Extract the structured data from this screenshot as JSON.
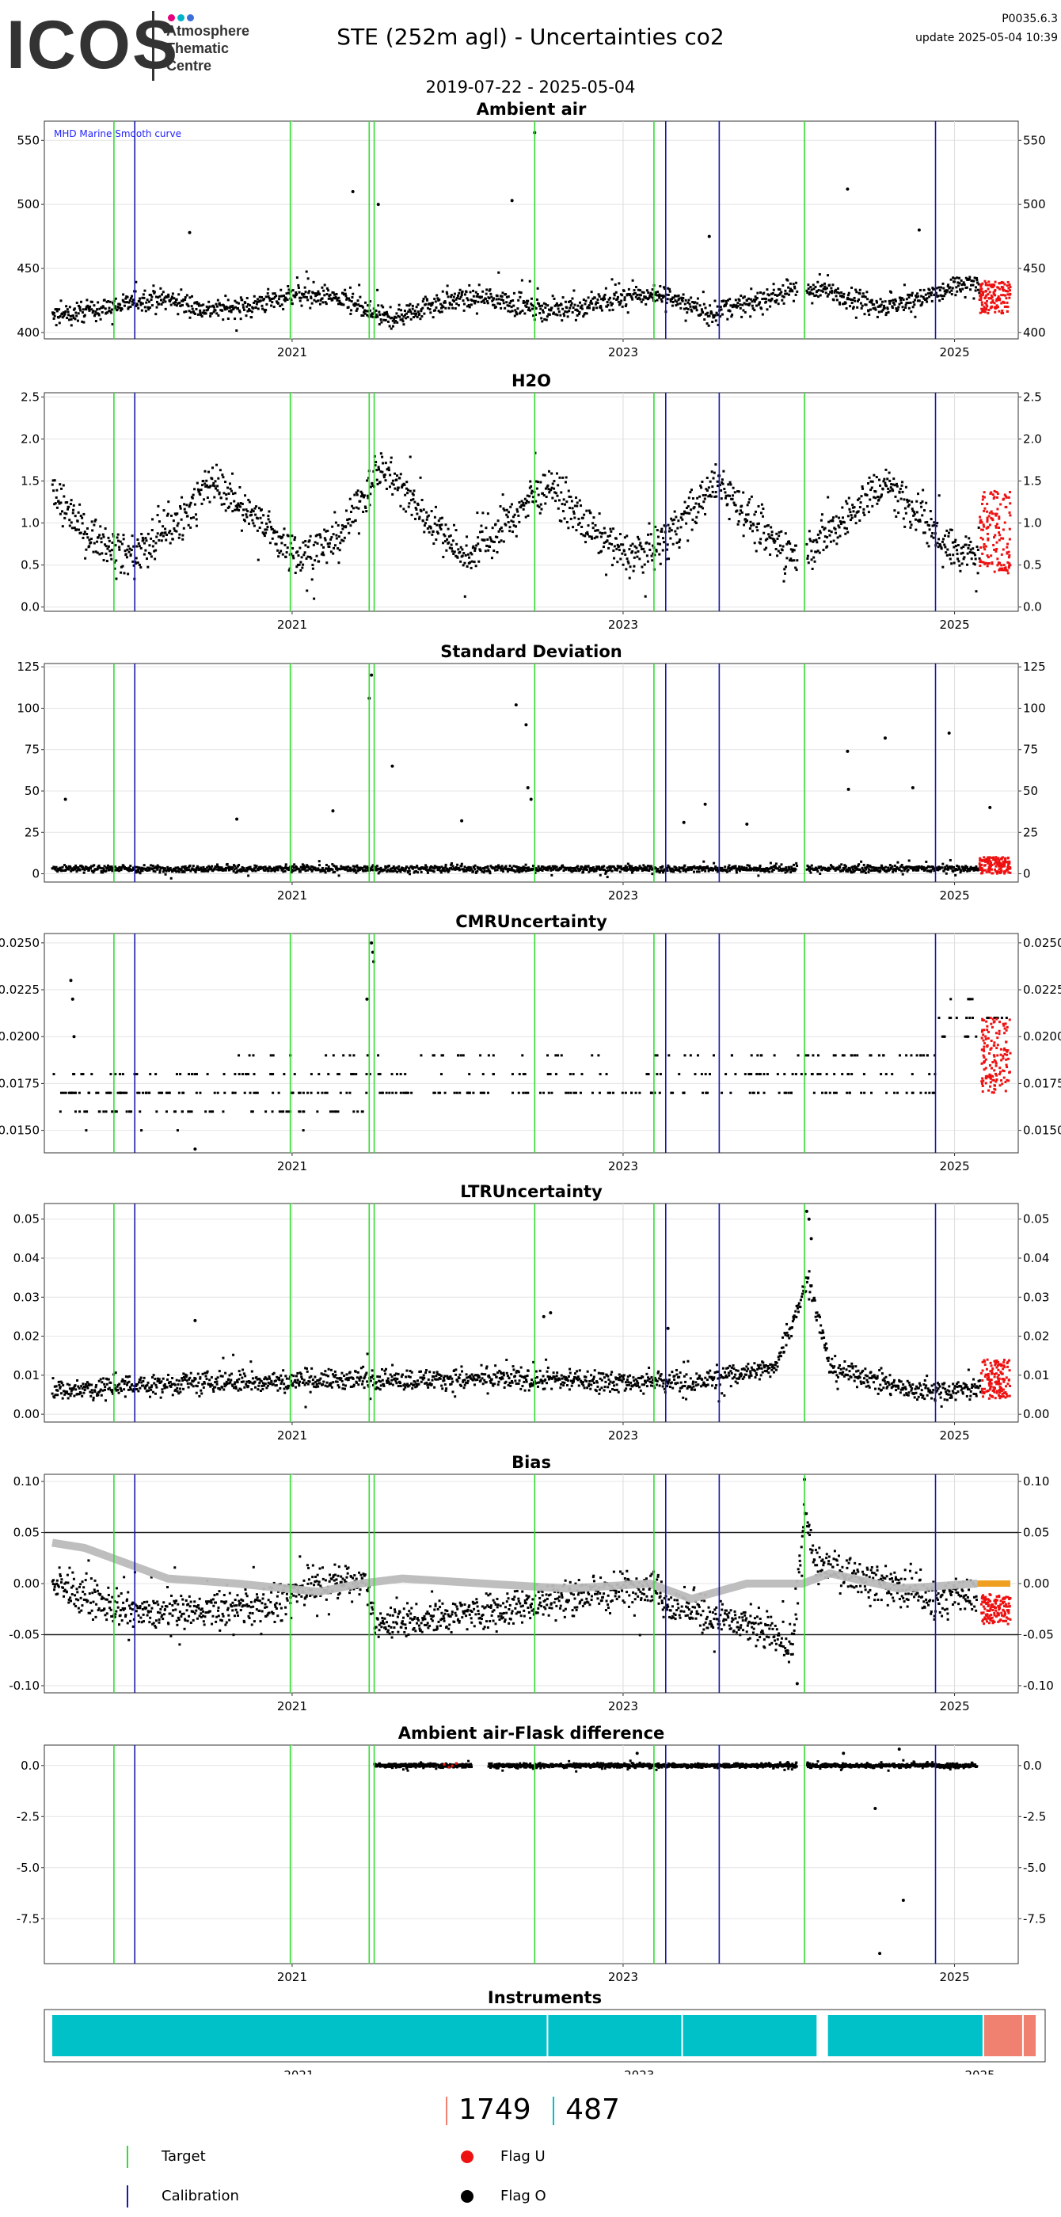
{
  "header": {
    "logo_text": "ICOS",
    "logo_sub": [
      "Atmosphere",
      "Thematic",
      "Centre"
    ],
    "logo_dot_colors": [
      "#e6007e",
      "#00b3c8",
      "#3b6fd8"
    ],
    "title": "STE  (252m agl) - Uncertainties co2",
    "date_range": "2019-07-22 - 2025-05-04",
    "code": "P0035.6.3",
    "update": "update  2025-05-04 10:39"
  },
  "colors": {
    "target": "#33dd33",
    "calibration": "#1a1aa8",
    "flag_u": "#ee1111",
    "flag_o": "#000000",
    "smooth": "#bbbbbb",
    "bias_orange": "#f0a020",
    "instrument_1": "#00c0c8",
    "instrument_2": "#f08070",
    "annotation": "#2222ff"
  },
  "chart_data": [
    {
      "type": "scatter",
      "title": "Ambient air",
      "annotation": "MHD Marine Smooth curve",
      "x_range": [
        "2019-07-22",
        "2025-05-04"
      ],
      "x_ticks": [
        "2021",
        "2023",
        "2025"
      ],
      "ylim": [
        395,
        565
      ],
      "y_ticks": [
        "400",
        "450",
        "500",
        "550"
      ],
      "baseline": [
        [
          "2019-07-22",
          412
        ],
        [
          "2019-12-01",
          420
        ],
        [
          "2020-03-01",
          428
        ],
        [
          "2020-07-01",
          418
        ],
        [
          "2020-10-01",
          420
        ],
        [
          "2021-01-01",
          430
        ],
        [
          "2021-04-01",
          428
        ],
        [
          "2021-08-01",
          410
        ],
        [
          "2021-11-01",
          422
        ],
        [
          "2022-03-01",
          428
        ],
        [
          "2022-07-01",
          418
        ],
        [
          "2022-10-01",
          420
        ],
        [
          "2023-01-01",
          428
        ],
        [
          "2023-04-01",
          430
        ],
        [
          "2023-07-01",
          415
        ],
        [
          "2023-10-01",
          422
        ],
        [
          "2024-01-01",
          432
        ],
        [
          "2024-04-01",
          432
        ],
        [
          "2024-08-01",
          420
        ],
        [
          "2024-11-01",
          428
        ],
        [
          "2025-02-01",
          438
        ],
        [
          "2025-05-04",
          432
        ]
      ],
      "spread": 12,
      "gaps": [
        [
          "2024-01-20",
          "2024-02-10"
        ]
      ],
      "outliers": [
        [
          "2022-06-20",
          556
        ],
        [
          "2021-05-15",
          510
        ],
        [
          "2024-05-10",
          512
        ],
        [
          "2022-05-01",
          503
        ],
        [
          "2021-07-10",
          500
        ],
        [
          "2020-05-20",
          478
        ],
        [
          "2023-07-10",
          475
        ],
        [
          "2024-10-15",
          480
        ]
      ],
      "flag_u_range": [
        "2025-02-25",
        "2025-05-04"
      ],
      "flag_u_band": [
        415,
        440
      ],
      "target_lines": [
        "2019-12-05",
        "2020-12-28",
        "2021-06-20",
        "2021-07-01",
        "2022-06-20",
        "2023-03-10",
        "2024-02-05"
      ],
      "calibration_lines": [
        "2020-01-20",
        "2023-04-05",
        "2023-08-01",
        "2024-11-20"
      ]
    },
    {
      "type": "scatter",
      "title": "H2O",
      "x_range": [
        "2019-07-22",
        "2025-05-04"
      ],
      "x_ticks": [
        "2021",
        "2023",
        "2025"
      ],
      "ylim": [
        -0.05,
        2.55
      ],
      "y_ticks": [
        "0.0",
        "0.5",
        "1.0",
        "1.5",
        "2.0",
        "2.5"
      ],
      "baseline": [
        [
          "2019-07-22",
          1.4
        ],
        [
          "2019-10-01",
          0.9
        ],
        [
          "2020-01-15",
          0.6
        ],
        [
          "2020-04-01",
          0.9
        ],
        [
          "2020-07-15",
          1.5
        ],
        [
          "2020-10-01",
          1.1
        ],
        [
          "2021-01-15",
          0.6
        ],
        [
          "2021-04-15",
          0.8
        ],
        [
          "2021-07-15",
          1.7
        ],
        [
          "2021-10-01",
          1.2
        ],
        [
          "2022-01-15",
          0.6
        ],
        [
          "2022-04-01",
          0.9
        ],
        [
          "2022-07-20",
          1.5
        ],
        [
          "2022-10-01",
          1.0
        ],
        [
          "2023-01-15",
          0.6
        ],
        [
          "2023-04-01",
          0.8
        ],
        [
          "2023-08-01",
          1.5
        ],
        [
          "2023-10-15",
          1.0
        ],
        [
          "2024-01-15",
          0.6
        ],
        [
          "2024-04-01",
          0.9
        ],
        [
          "2024-08-01",
          1.5
        ],
        [
          "2024-10-15",
          1.1
        ],
        [
          "2025-01-15",
          0.6
        ],
        [
          "2025-05-04",
          0.9
        ]
      ],
      "spread": 0.35,
      "gaps": [
        [
          "2024-01-20",
          "2024-02-10"
        ]
      ],
      "outliers": [],
      "flag_u_range": [
        "2025-02-25",
        "2025-05-04"
      ],
      "flag_u_band": [
        0.4,
        1.4
      ],
      "target_lines": [
        "2019-12-05",
        "2020-12-28",
        "2021-06-20",
        "2021-07-01",
        "2022-06-20",
        "2023-03-10",
        "2024-02-05"
      ],
      "calibration_lines": [
        "2020-01-20",
        "2023-04-05",
        "2023-08-01",
        "2024-11-20"
      ]
    },
    {
      "type": "scatter",
      "title": "Standard Deviation",
      "x_range": [
        "2019-07-22",
        "2025-05-04"
      ],
      "x_ticks": [
        "2021",
        "2023",
        "2025"
      ],
      "ylim": [
        -5,
        127
      ],
      "y_ticks": [
        "0",
        "25",
        "50",
        "75",
        "100",
        "125"
      ],
      "baseline": [
        [
          "2019-07-22",
          3
        ],
        [
          "2025-05-04",
          3
        ]
      ],
      "spread": 3,
      "gaps": [
        [
          "2024-01-20",
          "2024-02-10"
        ]
      ],
      "outliers": [
        [
          "2021-06-25",
          120
        ],
        [
          "2021-06-20",
          106
        ],
        [
          "2022-05-10",
          102
        ],
        [
          "2022-06-01",
          90
        ],
        [
          "2024-08-01",
          82
        ],
        [
          "2024-12-20",
          85
        ],
        [
          "2024-05-10",
          74
        ],
        [
          "2021-08-10",
          65
        ],
        [
          "2022-06-05",
          52
        ],
        [
          "2022-06-12",
          45
        ],
        [
          "2024-05-12",
          51
        ],
        [
          "2024-10-01",
          52
        ],
        [
          "2019-08-20",
          45
        ],
        [
          "2023-07-01",
          42
        ],
        [
          "2025-03-20",
          40
        ],
        [
          "2021-04-01",
          38
        ],
        [
          "2020-09-01",
          33
        ],
        [
          "2023-05-15",
          31
        ],
        [
          "2022-01-10",
          32
        ],
        [
          "2023-10-01",
          30
        ]
      ],
      "flag_u_range": [
        "2025-02-25",
        "2025-05-04"
      ],
      "flag_u_band": [
        0,
        10
      ],
      "target_lines": [
        "2019-12-05",
        "2020-12-28",
        "2021-06-20",
        "2021-07-01",
        "2022-06-20",
        "2023-03-10",
        "2024-02-05"
      ],
      "calibration_lines": [
        "2020-01-20",
        "2023-04-05",
        "2023-08-01",
        "2024-11-20"
      ]
    },
    {
      "type": "scatter",
      "title": "CMRUncertainty",
      "x_range": [
        "2019-07-22",
        "2025-05-04"
      ],
      "x_ticks": [
        "2021",
        "2023",
        "2025"
      ],
      "ylim": [
        0.0138,
        0.0255
      ],
      "y_ticks": [
        "0.0150",
        "0.0175",
        "0.0200",
        "0.0225",
        "0.0250"
      ],
      "levels": [
        {
          "y": 0.016,
          "from": "2019-07-22",
          "to": "2021-06-15",
          "density": 0.9
        },
        {
          "y": 0.017,
          "from": "2019-07-22",
          "to": "2024-11-20",
          "density": 1.0
        },
        {
          "y": 0.018,
          "from": "2019-07-22",
          "to": "2024-11-20",
          "density": 0.6
        },
        {
          "y": 0.019,
          "from": "2020-09-01",
          "to": "2024-11-20",
          "density": 0.5
        },
        {
          "y": 0.015,
          "from": "2019-10-01",
          "to": "2021-05-01",
          "density": 0.08
        },
        {
          "y": 0.021,
          "from": "2024-11-20",
          "to": "2025-05-04",
          "density": 1.0
        },
        {
          "y": 0.02,
          "from": "2024-11-20",
          "to": "2025-05-04",
          "density": 0.8
        },
        {
          "y": 0.022,
          "from": "2024-12-01",
          "to": "2025-02-20",
          "density": 0.7
        }
      ],
      "outliers": [
        [
          "2019-09-01",
          0.023
        ],
        [
          "2019-09-05",
          0.022
        ],
        [
          "2019-09-08",
          0.02
        ],
        [
          "2020-06-01",
          0.014
        ],
        [
          "2021-06-25",
          0.025
        ],
        [
          "2021-06-28",
          0.0245
        ],
        [
          "2021-06-30",
          0.024
        ],
        [
          "2021-06-15",
          0.022
        ]
      ],
      "flag_u_range": [
        "2025-03-01",
        "2025-05-04"
      ],
      "flag_u_band": [
        0.017,
        0.021
      ],
      "target_lines": [
        "2019-12-05",
        "2020-12-28",
        "2021-06-20",
        "2021-07-01",
        "2022-06-20",
        "2023-03-10",
        "2024-02-05"
      ],
      "calibration_lines": [
        "2020-01-20",
        "2023-04-05",
        "2023-08-01",
        "2024-11-20"
      ]
    },
    {
      "type": "scatter",
      "title": "LTRUncertainty",
      "x_range": [
        "2019-07-22",
        "2025-05-04"
      ],
      "x_ticks": [
        "2021",
        "2023",
        "2025"
      ],
      "ylim": [
        -0.002,
        0.054
      ],
      "y_ticks": [
        "0.00",
        "0.01",
        "0.02",
        "0.03",
        "0.04",
        "0.05"
      ],
      "baseline": [
        [
          "2019-07-22",
          0.006
        ],
        [
          "2020-06-01",
          0.008
        ],
        [
          "2021-06-01",
          0.009
        ],
        [
          "2022-06-01",
          0.009
        ],
        [
          "2023-06-01",
          0.008
        ],
        [
          "2023-12-01",
          0.012
        ],
        [
          "2024-02-15",
          0.035
        ],
        [
          "2024-04-01",
          0.012
        ],
        [
          "2024-10-01",
          0.006
        ],
        [
          "2025-05-04",
          0.007
        ]
      ],
      "spread": 0.004,
      "gaps": [],
      "outliers": [
        [
          "2024-02-10",
          0.052
        ],
        [
          "2024-02-15",
          0.05
        ],
        [
          "2024-02-20",
          0.045
        ],
        [
          "2022-07-10",
          0.025
        ],
        [
          "2020-06-01",
          0.024
        ],
        [
          "2022-07-25",
          0.026
        ],
        [
          "2023-04-10",
          0.022
        ]
      ],
      "flag_u_range": [
        "2025-03-01",
        "2025-05-04"
      ],
      "flag_u_band": [
        0.004,
        0.014
      ],
      "target_lines": [
        "2019-12-05",
        "2020-12-28",
        "2021-06-20",
        "2021-07-01",
        "2022-06-20",
        "2023-03-10",
        "2024-02-05"
      ],
      "calibration_lines": [
        "2020-01-20",
        "2023-04-05",
        "2023-08-01",
        "2024-11-20"
      ]
    },
    {
      "type": "scatter",
      "title": "Bias",
      "x_range": [
        "2019-07-22",
        "2025-05-04"
      ],
      "x_ticks": [
        "2021",
        "2023",
        "2025"
      ],
      "ylim": [
        -0.107,
        0.107
      ],
      "y_ticks": [
        "-0.10",
        "-0.05",
        "0.00",
        "0.05",
        "0.10"
      ],
      "hlines": [
        0.05,
        -0.05
      ],
      "baseline": [
        [
          "2019-07-22",
          0.0
        ],
        [
          "2020-01-20",
          -0.03
        ],
        [
          "2020-12-28",
          -0.02
        ],
        [
          "2021-01-10",
          -0.005
        ],
        [
          "2021-06-15",
          0.005
        ],
        [
          "2021-07-01",
          -0.04
        ],
        [
          "2022-06-20",
          -0.02
        ],
        [
          "2023-03-10",
          0.0
        ],
        [
          "2023-04-05",
          -0.02
        ],
        [
          "2023-10-01",
          -0.04
        ],
        [
          "2024-01-10",
          -0.06
        ],
        [
          "2024-02-05",
          0.07
        ],
        [
          "2024-03-01",
          0.02
        ],
        [
          "2024-11-20",
          -0.015
        ],
        [
          "2025-02-20",
          -0.01
        ]
      ],
      "spread": 0.025,
      "gaps": [],
      "outliers": [
        [
          "2024-02-05",
          0.102
        ],
        [
          "2024-01-20",
          -0.098
        ]
      ],
      "smooth_curve": [
        [
          "2019-07-22",
          0.04
        ],
        [
          "2019-10-01",
          0.035
        ],
        [
          "2020-01-01",
          0.02
        ],
        [
          "2020-04-01",
          0.005
        ],
        [
          "2020-09-01",
          0.0
        ],
        [
          "2021-03-01",
          -0.008
        ],
        [
          "2021-06-01",
          0.0
        ],
        [
          "2021-09-01",
          0.005
        ],
        [
          "2022-03-01",
          0.0
        ],
        [
          "2022-09-01",
          -0.005
        ],
        [
          "2023-03-01",
          0.0
        ],
        [
          "2023-06-01",
          -0.015
        ],
        [
          "2023-10-01",
          0.0
        ],
        [
          "2024-02-01",
          0.0
        ],
        [
          "2024-04-01",
          0.01
        ],
        [
          "2024-09-01",
          -0.005
        ],
        [
          "2025-02-20",
          0.0
        ]
      ],
      "orange_segment": [
        [
          "2025-02-20",
          0.0
        ],
        [
          "2025-05-04",
          0.0
        ]
      ],
      "flag_u_range": [
        "2025-03-01",
        "2025-05-04"
      ],
      "flag_u_band": [
        -0.04,
        -0.01
      ],
      "target_lines": [
        "2019-12-05",
        "2020-12-28",
        "2021-06-20",
        "2021-07-01",
        "2022-06-20",
        "2023-03-10",
        "2024-02-05"
      ],
      "calibration_lines": [
        "2020-01-20",
        "2023-04-05",
        "2023-08-01",
        "2024-11-20"
      ]
    },
    {
      "type": "scatter",
      "title": "Ambient air-Flask difference",
      "x_range": [
        "2019-07-22",
        "2025-05-04"
      ],
      "x_ticks": [
        "2021",
        "2023",
        "2025"
      ],
      "ylim": [
        -9.7,
        1.0
      ],
      "y_ticks": [
        "0.0",
        "-2.5",
        "-5.0",
        "-7.5"
      ],
      "baseline": [
        [
          "2021-07-01",
          0.0
        ],
        [
          "2025-02-20",
          0.0
        ]
      ],
      "spread": 0.15,
      "gaps": [
        [
          "2022-02-01",
          "2022-03-10"
        ],
        [
          "2024-01-20",
          "2024-02-10"
        ]
      ],
      "outliers": [
        [
          "2024-07-20",
          -9.2
        ],
        [
          "2024-09-10",
          -6.6
        ],
        [
          "2024-07-10",
          -2.1
        ],
        [
          "2023-02-01",
          0.6
        ],
        [
          "2024-05-01",
          0.6
        ],
        [
          "2024-09-01",
          0.8
        ]
      ],
      "flag_u_range": [
        "2021-12-01",
        "2022-01-01"
      ],
      "flag_u_band": [
        -0.1,
        0.1
      ],
      "target_lines": [
        "2019-12-05",
        "2020-12-28",
        "2021-06-20",
        "2021-07-01",
        "2022-06-20",
        "2023-03-10",
        "2024-02-05"
      ],
      "calibration_lines": [
        "2020-01-20",
        "2023-04-05",
        "2023-08-01",
        "2024-11-20"
      ]
    },
    {
      "type": "bar",
      "title": "Instruments",
      "x_range": [
        "2019-07-22",
        "2025-05-04"
      ],
      "x_ticks": [
        "2021",
        "2023",
        "2025"
      ],
      "segments": [
        {
          "from": "2019-07-22",
          "to": "2022-06-20",
          "instrument": 1749
        },
        {
          "from": "2022-06-20",
          "to": "2023-04-05",
          "instrument": 1749
        },
        {
          "from": "2023-04-05",
          "to": "2024-01-20",
          "instrument": 1749
        },
        {
          "from": "2024-02-10",
          "to": "2025-01-10",
          "instrument": 1749
        },
        {
          "from": "2025-01-10",
          "to": "2025-04-05",
          "instrument": 487
        },
        {
          "from": "2025-04-05",
          "to": "2025-05-04",
          "instrument": 487
        }
      ]
    }
  ],
  "instrument_ids": [
    "1749",
    "487"
  ],
  "legend": {
    "target": "Target",
    "calibration": "Calibration",
    "flag_u": "Flag U",
    "flag_o": "Flag O"
  }
}
